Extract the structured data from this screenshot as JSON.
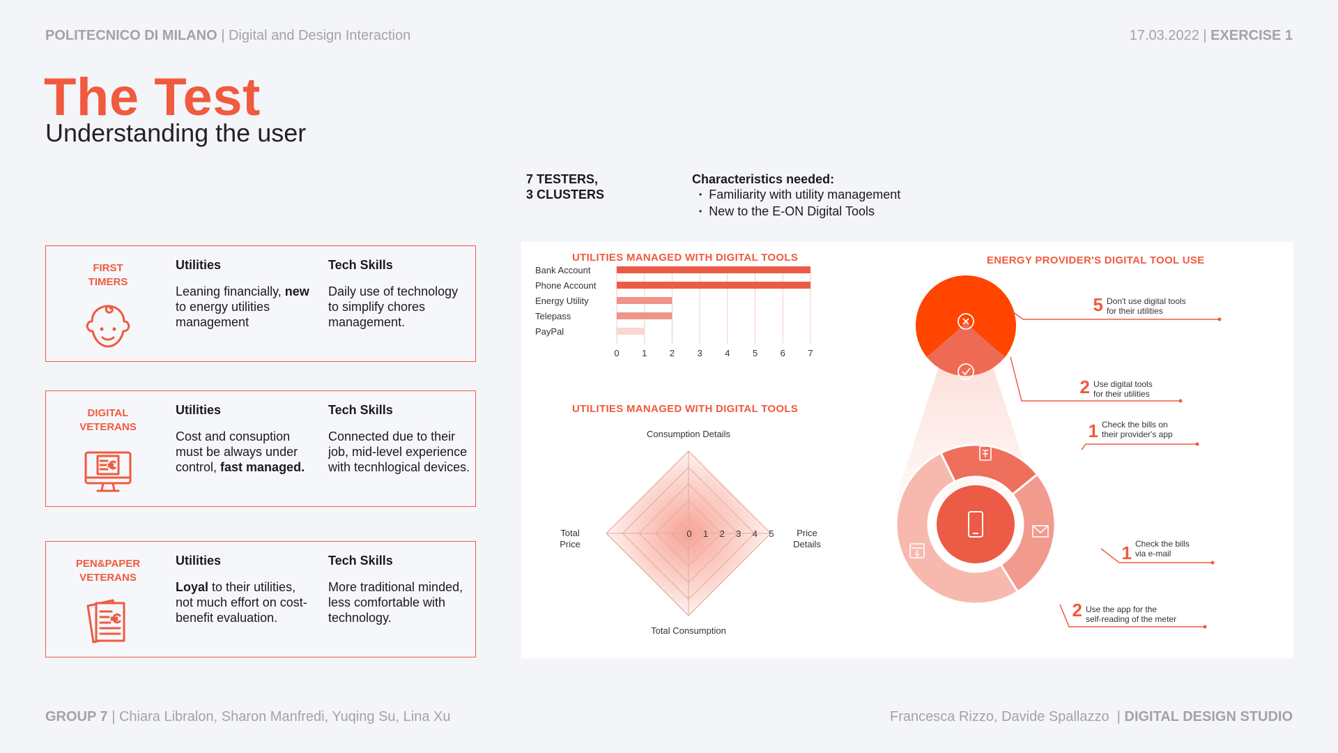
{
  "header": {
    "institution": "POLITECNICO DI MILANO",
    "course": "Digital and Design Interaction",
    "date": "17.03.2022",
    "exercise": "EXERCISE 1"
  },
  "title": "The Test",
  "subtitle": "Understanding the user",
  "testers": {
    "line1": "7 TESTERS,",
    "line2": "3 CLUSTERS"
  },
  "characteristics": {
    "title": "Characteristics needed:",
    "items": [
      "Familiarity with utility management",
      "New to the E-ON Digital Tools"
    ]
  },
  "clusters": [
    {
      "name_line1": "FIRST",
      "name_line2": "TIMERS",
      "icon": "baby-face-icon",
      "utilities_title": "Utilities",
      "utilities_a": "Leaning financially, ",
      "utilities_bold": "new",
      "utilities_b": " to energy utilities management",
      "tech_title": "Tech Skills",
      "tech_text": "Daily use of technology to simplify chores management."
    },
    {
      "name_line1": "DIGITAL",
      "name_line2": "VETERANS",
      "icon": "computer-invoice-icon",
      "utilities_title": "Utilities",
      "utilities_a": "Cost and consuption must be always under control, ",
      "utilities_bold": "fast managed.",
      "utilities_b": "",
      "tech_title": "Tech Skills",
      "tech_text": "Connected due to their job, mid-level experience with tecnhlogical devices."
    },
    {
      "name_line1": "PEN&PAPER",
      "name_line2": "VETERANS",
      "icon": "paper-bills-icon",
      "utilities_title": "Utilities",
      "utilities_a": "",
      "utilities_bold": "Loyal",
      "utilities_b": " to their utilities, not much effort on cost-benefit evaluation.",
      "tech_title": "Tech Skills",
      "tech_text": "More traditional minded, less comfortable with technology."
    }
  ],
  "chart_data": [
    {
      "type": "bar",
      "orientation": "horizontal",
      "title": "UTILITIES MANAGED WITH DIGITAL TOOLS",
      "categories": [
        "Bank Account",
        "Phone Account",
        "Energy Utility",
        "Telepass",
        "PayPal"
      ],
      "values": [
        7,
        7,
        2,
        2,
        1
      ],
      "xlim": [
        0,
        7
      ],
      "xticks": [
        "0",
        "1",
        "2",
        "3",
        "4",
        "5",
        "6",
        "7"
      ],
      "colors": [
        "#ec5b45",
        "#ec5b45",
        "#ef9488",
        "#ef9488",
        "#fbd5cf"
      ],
      "grid": true
    },
    {
      "type": "radar",
      "title": "UTILITIES MANAGED WITH DIGITAL TOOLS",
      "axes": [
        "Consumption Details",
        "Price Details",
        "Total Consumption",
        "Total Price"
      ],
      "axis_label_lines": {
        "top": [
          "Consumption Details"
        ],
        "right": [
          "Price",
          "Details"
        ],
        "bottom": [
          "Total Consumption"
        ],
        "left": [
          "Total",
          "Price"
        ]
      },
      "rticks": [
        "0",
        "1",
        "2",
        "3",
        "4",
        "5"
      ],
      "rlim": [
        0,
        5
      ],
      "series_values": [
        5,
        5,
        5,
        5
      ]
    },
    {
      "type": "pie",
      "title": "ENERGY PROVIDER'S DIGITAL TOOL USE",
      "top_pie": [
        {
          "count": "5",
          "line1": "Don't use digital tools",
          "line2": "for their utilities",
          "icon": "x-circle-icon"
        },
        {
          "count": "2",
          "line1": "Use digital tools",
          "line2": "for their utilities",
          "icon": "check-circle-icon"
        }
      ],
      "donut": [
        {
          "count": "1",
          "line1": "Check the bills on",
          "line2": "their provider's app",
          "icon": "clipboard-invoice-icon"
        },
        {
          "count": "1",
          "line1": "Check the bills",
          "line2": "via e-mail",
          "icon": "envelope-icon"
        },
        {
          "count": "2",
          "line1": "Use the app for the",
          "line2": "self-reading of the meter",
          "icon": "meter-icon"
        }
      ],
      "center_icon": "smartphone-icon"
    }
  ],
  "footer": {
    "group": "GROUP 7",
    "members": "Chiara Libralon, Sharon Manfredi, Yuqing Su, Lina Xu",
    "professors": "Francesca Rizzo, Davide Spallazzo",
    "studio": "DIGITAL DESIGN STUDIO"
  },
  "colors": {
    "accent": "#f05a3e",
    "light": "#ef9488",
    "pale": "#fbd5cf",
    "dark": "#ff4500"
  }
}
